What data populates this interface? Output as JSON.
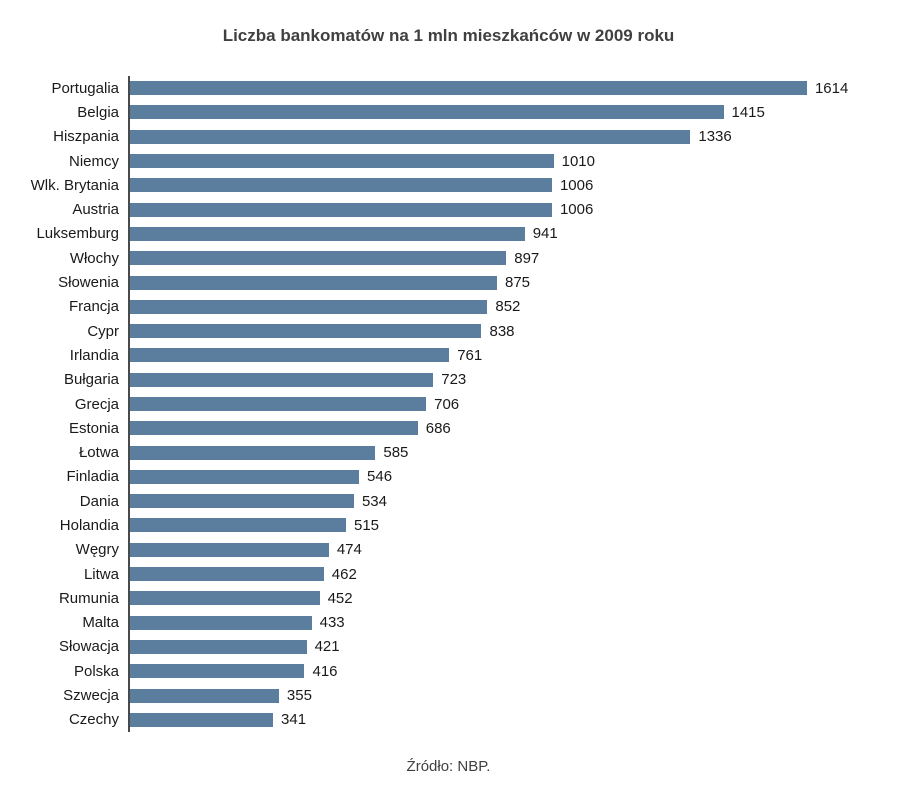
{
  "chart_data": {
    "type": "bar",
    "orientation": "horizontal",
    "title": "Liczba bankomatów na 1 mln mieszkańców w 2009 roku",
    "source": "Źródło: NBP.",
    "categories": [
      "Portugalia",
      "Belgia",
      "Hiszpania",
      "Niemcy",
      "Wlk. Brytania",
      "Austria",
      "Luksemburg",
      "Włochy",
      "Słowenia",
      "Francja",
      "Cypr",
      "Irlandia",
      "Bułgaria",
      "Grecja",
      "Estonia",
      "Łotwa",
      "Finladia",
      "Dania",
      "Holandia",
      "Węgry",
      "Litwa",
      "Rumunia",
      "Malta",
      "Słowacja",
      "Polska",
      "Szwecja",
      "Czechy"
    ],
    "values": [
      1614,
      1415,
      1336,
      1010,
      1006,
      1006,
      941,
      897,
      875,
      852,
      838,
      761,
      723,
      706,
      686,
      585,
      546,
      534,
      515,
      474,
      462,
      452,
      433,
      421,
      416,
      355,
      341
    ],
    "xlim": [
      0,
      1800
    ],
    "bar_color": "#5b7d9e",
    "axis_line_color": "#4a4a4a",
    "grid": false,
    "legend": false,
    "value_labels": true
  }
}
